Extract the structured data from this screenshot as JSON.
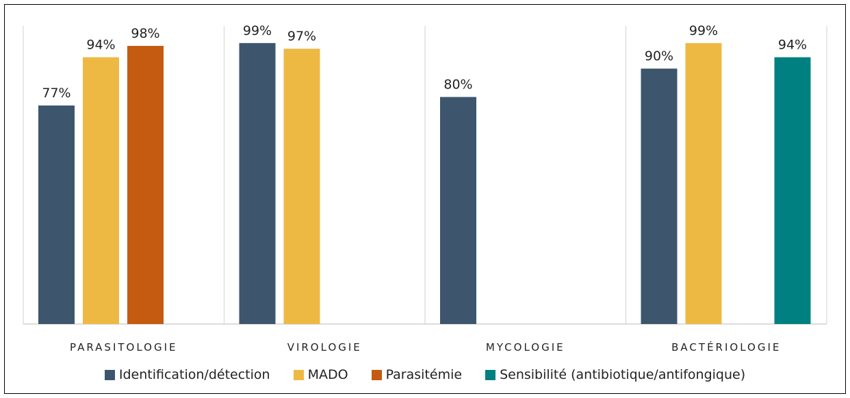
{
  "chart_data": {
    "type": "bar",
    "title": "",
    "xlabel": "",
    "ylabel": "",
    "ylim": [
      0,
      1.05
    ],
    "grid": false,
    "legend_position": "bottom",
    "categories": [
      "PARASITOLOGIE",
      "VIROLOGIE",
      "MYCOLOGIE",
      "BACTÉRIOLOGIE"
    ],
    "series": [
      {
        "name": "Identification/détection",
        "color": "#3d566e",
        "values": [
          0.77,
          0.99,
          0.8,
          0.9
        ],
        "labels": [
          "77%",
          "99%",
          "80%",
          "90%"
        ]
      },
      {
        "name": "MADO",
        "color": "#eeb943",
        "values": [
          0.94,
          0.97,
          null,
          0.99
        ],
        "labels": [
          "94%",
          "97%",
          "",
          "99%"
        ]
      },
      {
        "name": "Parasitémie",
        "color": "#c55a11",
        "values": [
          0.98,
          null,
          null,
          null
        ],
        "labels": [
          "98%",
          "",
          "",
          ""
        ]
      },
      {
        "name": "Sensibilité (antibiotique/antifongique)",
        "color": "#008080",
        "values": [
          null,
          null,
          null,
          0.94
        ],
        "labels": [
          "",
          "",
          "",
          "94%"
        ]
      }
    ]
  }
}
